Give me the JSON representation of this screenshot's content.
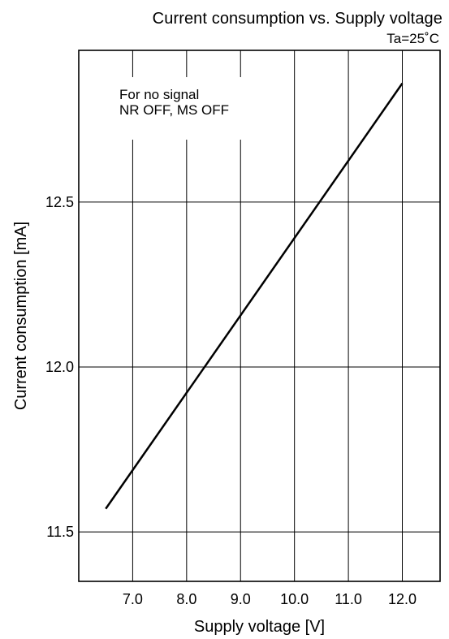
{
  "chart_data": {
    "type": "line",
    "title": "Current consumption vs. Supply voltage",
    "condition": "Ta=25˚C",
    "xlabel": "Supply voltage [V]",
    "ylabel": "Current consumption [mA]",
    "xlim": [
      6.0,
      12.7
    ],
    "ylim": [
      11.35,
      12.96
    ],
    "xticks": [
      7.0,
      8.0,
      9.0,
      10.0,
      11.0,
      12.0
    ],
    "xtick_labels": [
      "7.0",
      "8.0",
      "9.0",
      "10.0",
      "11.0",
      "12.0"
    ],
    "yticks": [
      11.5,
      12.0,
      12.5
    ],
    "ytick_labels": [
      "11.5",
      "12.0",
      "12.5"
    ],
    "grid": true,
    "annotation": [
      "For no signal",
      "NR OFF, MS OFF"
    ],
    "series": [
      {
        "x": [
          6.5,
          12.0
        ],
        "y": [
          11.57,
          12.86
        ]
      }
    ]
  }
}
